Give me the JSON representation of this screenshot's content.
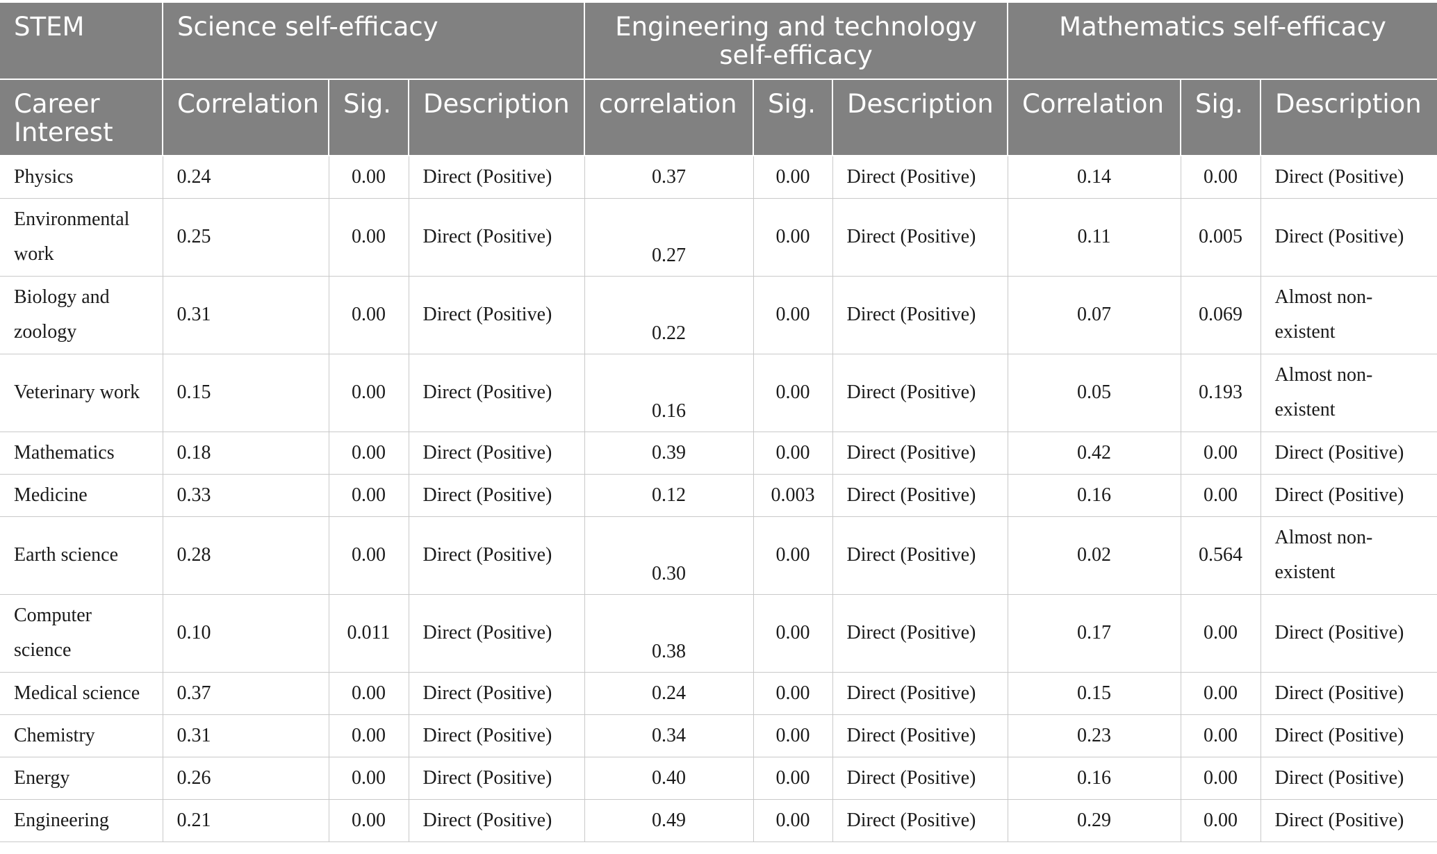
{
  "table": {
    "header_groups": [
      {
        "label": "STEM",
        "colspan": 1
      },
      {
        "label": "Science self-efficacy",
        "colspan": 3
      },
      {
        "label": "Engineering and technology self-efficacy",
        "colspan": 3
      },
      {
        "label": "Mathematics self-efficacy",
        "colspan": 3
      }
    ],
    "subheaders": [
      "Career Interest",
      "Correlation",
      "Sig.",
      "Description",
      "correlation",
      "Sig.",
      "Description",
      "Correlation",
      "Sig.",
      "Description"
    ],
    "rows": [
      {
        "career": "Physics",
        "sci_corr": "0.24",
        "sci_sig": "0.00",
        "sci_desc": "Direct (Positive)",
        "eng_corr": "0.37",
        "eng_sig": "0.00",
        "eng_desc": "Direct (Positive)",
        "math_corr": "0.14",
        "math_sig": "0.00",
        "math_desc": "Direct (Positive)"
      },
      {
        "career": "Environmental work",
        "sci_corr": "0.25",
        "sci_sig": "0.00",
        "sci_desc": "Direct (Positive)",
        "eng_corr": "0.27",
        "eng_sig": "0.00",
        "eng_desc": "Direct (Positive)",
        "math_corr": "0.11",
        "math_sig": "0.005",
        "math_desc": "Direct (Positive)"
      },
      {
        "career": "Biology and zoology",
        "sci_corr": "0.31",
        "sci_sig": "0.00",
        "sci_desc": "Direct (Positive)",
        "eng_corr": "0.22",
        "eng_sig": "0.00",
        "eng_desc": "Direct (Positive)",
        "math_corr": "0.07",
        "math_sig": "0.069",
        "math_desc": "Almost non-existent"
      },
      {
        "career": "Veterinary work",
        "sci_corr": "0.15",
        "sci_sig": "0.00",
        "sci_desc": "Direct (Positive)",
        "eng_corr": "0.16",
        "eng_sig": "0.00",
        "eng_desc": "Direct (Positive)",
        "math_corr": "0.05",
        "math_sig": "0.193",
        "math_desc": "Almost non-existent"
      },
      {
        "career": "Mathematics",
        "sci_corr": "0.18",
        "sci_sig": "0.00",
        "sci_desc": "Direct (Positive)",
        "eng_corr": "0.39",
        "eng_sig": "0.00",
        "eng_desc": "Direct (Positive)",
        "math_corr": "0.42",
        "math_sig": "0.00",
        "math_desc": "Direct (Positive)"
      },
      {
        "career": "Medicine",
        "sci_corr": "0.33",
        "sci_sig": "0.00",
        "sci_desc": "Direct (Positive)",
        "eng_corr": "0.12",
        "eng_sig": "0.003",
        "eng_desc": "Direct (Positive)",
        "math_corr": "0.16",
        "math_sig": "0.00",
        "math_desc": "Direct (Positive)"
      },
      {
        "career": "Earth science",
        "sci_corr": "0.28",
        "sci_sig": "0.00",
        "sci_desc": "Direct (Positive)",
        "eng_corr": "0.30",
        "eng_sig": "0.00",
        "eng_desc": "Direct (Positive)",
        "math_corr": "0.02",
        "math_sig": "0.564",
        "math_desc": "Almost non-existent"
      },
      {
        "career": "Computer science",
        "sci_corr": "0.10",
        "sci_sig": "0.011",
        "sci_desc": "Direct (Positive)",
        "eng_corr": "0.38",
        "eng_sig": "0.00",
        "eng_desc": "Direct (Positive)",
        "math_corr": "0.17",
        "math_sig": "0.00",
        "math_desc": "Direct (Positive)"
      },
      {
        "career": "Medical science",
        "sci_corr": "0.37",
        "sci_sig": "0.00",
        "sci_desc": "Direct (Positive)",
        "eng_corr": "0.24",
        "eng_sig": "0.00",
        "eng_desc": "Direct (Positive)",
        "math_corr": "0.15",
        "math_sig": "0.00",
        "math_desc": "Direct (Positive)"
      },
      {
        "career": "Chemistry",
        "sci_corr": "0.31",
        "sci_sig": "0.00",
        "sci_desc": "Direct (Positive)",
        "eng_corr": "0.34",
        "eng_sig": "0.00",
        "eng_desc": "Direct (Positive)",
        "math_corr": "0.23",
        "math_sig": "0.00",
        "math_desc": "Direct (Positive)"
      },
      {
        "career": "Energy",
        "sci_corr": "0.26",
        "sci_sig": "0.00",
        "sci_desc": "Direct (Positive)",
        "eng_corr": "0.40",
        "eng_sig": "0.00",
        "eng_desc": "Direct (Positive)",
        "math_corr": "0.16",
        "math_sig": "0.00",
        "math_desc": "Direct (Positive)"
      },
      {
        "career": "Engineering",
        "sci_corr": "0.21",
        "sci_sig": "0.00",
        "sci_desc": "Direct (Positive)",
        "eng_corr": "0.49",
        "eng_sig": "0.00",
        "eng_desc": "Direct (Positive)",
        "math_corr": "0.29",
        "math_sig": "0.00",
        "math_desc": "Direct (Positive)"
      }
    ]
  },
  "colors": {
    "header_bg": "#818181",
    "header_text": "#ffffff",
    "grid": "#c9c9c9",
    "body_text": "#1a1a1a"
  }
}
